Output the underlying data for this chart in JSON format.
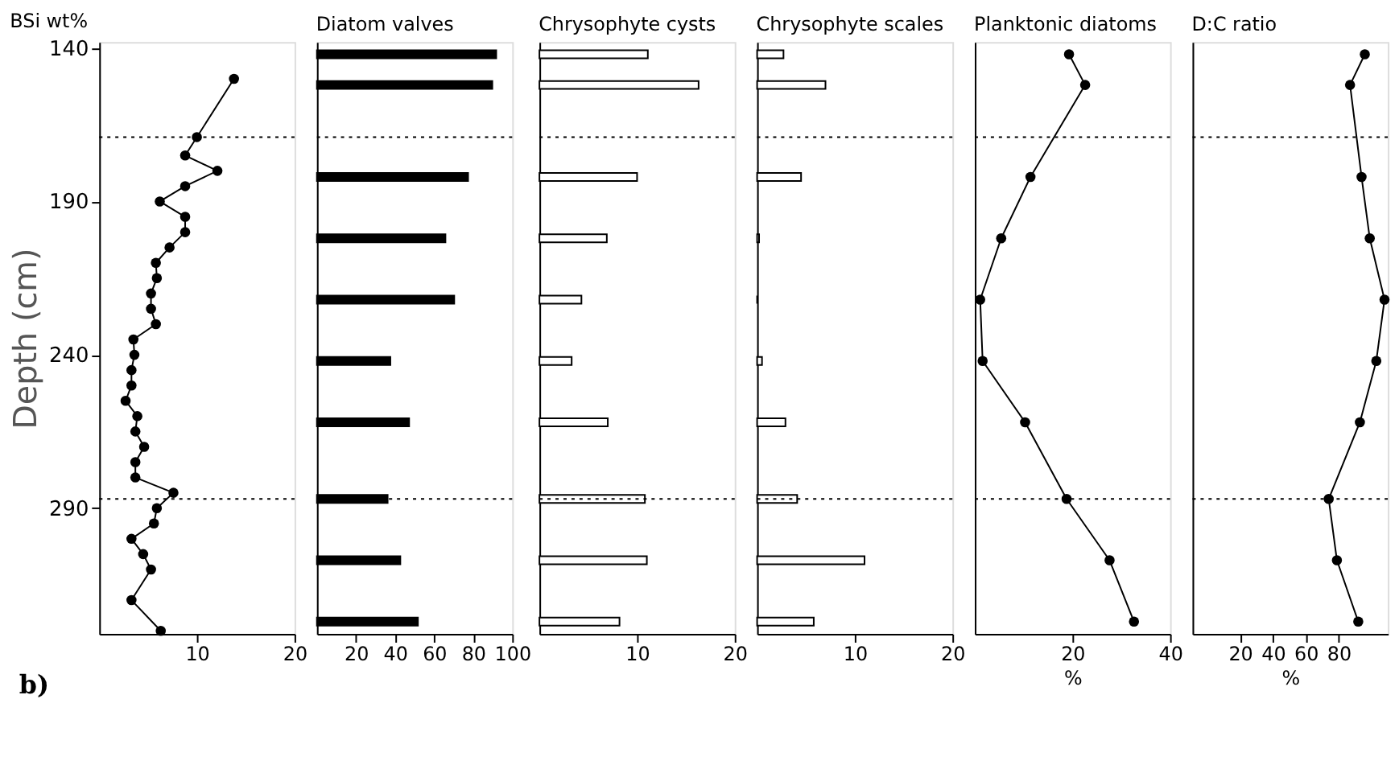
{
  "chart_data": [
    {
      "type": "line",
      "title": "BSi wt%",
      "orientation": "horizontal",
      "ylabel": "Depth (cm)",
      "color": "#000000",
      "marker": "circle",
      "x": [
        150,
        169,
        175,
        180,
        185,
        190,
        195,
        200,
        205,
        210,
        215,
        220,
        225,
        230,
        235,
        240,
        245,
        250,
        255,
        260,
        265,
        270,
        275,
        280,
        285,
        290,
        295,
        300,
        305,
        310,
        320,
        330
      ],
      "values": [
        13.8,
        10.0,
        8.8,
        12.1,
        8.8,
        6.2,
        8.8,
        8.8,
        7.2,
        5.8,
        5.9,
        5.3,
        5.3,
        5.8,
        3.5,
        3.6,
        3.3,
        3.3,
        2.7,
        3.9,
        3.7,
        4.6,
        3.7,
        3.7,
        7.6,
        5.9,
        5.6,
        3.3,
        4.5,
        5.3,
        3.3,
        6.3
      ],
      "xlim": [
        0,
        20
      ],
      "xticks": [
        10,
        20
      ],
      "ylim": [
        331,
        138
      ],
      "yticks": [
        140,
        190,
        240,
        290
      ],
      "ref_lines": [
        {
          "axis": "y",
          "value": 169,
          "line_style": "dotted"
        },
        {
          "axis": "y",
          "value": 287,
          "line_style": "dotted"
        }
      ],
      "annotations": [
        "b)"
      ]
    },
    {
      "type": "bar",
      "title": "Diatom valves",
      "orientation": "horizontal",
      "color": "#000000",
      "tick_labels": "x",
      "x": [
        142,
        152,
        182,
        202,
        222,
        242,
        262,
        287,
        307,
        327
      ],
      "values": [
        91.8,
        89.8,
        77.4,
        65.8,
        70.3,
        37.6,
        47.2,
        36.2,
        42.7,
        51.7
      ],
      "xlim": [
        0,
        100
      ],
      "xticks": [
        20,
        40,
        60,
        80,
        100
      ],
      "ylim": [
        331,
        138
      ],
      "ref_lines": [
        {
          "axis": "y",
          "value": 169,
          "line_style": "dotted"
        },
        {
          "axis": "y",
          "value": 287,
          "line_style": "dotted"
        }
      ]
    },
    {
      "type": "bar",
      "title": "Chrysophyte cysts",
      "orientation": "horizontal",
      "color": "#ffffff",
      "tick_labels": "x",
      "x": [
        142,
        152,
        182,
        202,
        222,
        242,
        262,
        287,
        307,
        327
      ],
      "values": [
        11.1,
        16.3,
        10.0,
        6.9,
        4.3,
        3.3,
        7.0,
        10.8,
        11.0,
        8.2
      ],
      "xlim": [
        0,
        20
      ],
      "xticks": [
        10,
        20
      ],
      "ylim": [
        331,
        138
      ],
      "ref_lines": [
        {
          "axis": "y",
          "value": 169,
          "line_style": "dotted"
        },
        {
          "axis": "y",
          "value": 287,
          "line_style": "dotted"
        }
      ]
    },
    {
      "type": "bar",
      "title": "Chrysophyte scales",
      "orientation": "horizontal",
      "color": "#ffffff",
      "tick_labels": "x",
      "x": [
        142,
        152,
        182,
        202,
        222,
        242,
        262,
        287,
        307,
        327
      ],
      "values": [
        2.7,
        7.0,
        4.5,
        0.2,
        0,
        0.5,
        2.9,
        4.1,
        11.0,
        5.8
      ],
      "xlim": [
        0,
        20
      ],
      "xticks": [
        10,
        20
      ],
      "ylim": [
        331,
        138
      ],
      "ref_lines": [
        {
          "axis": "y",
          "value": 169,
          "line_style": "dotted"
        },
        {
          "axis": "y",
          "value": 287,
          "line_style": "dotted"
        }
      ]
    },
    {
      "type": "line",
      "title": "Planktonic diatoms",
      "orientation": "horizontal",
      "xlabel": "%",
      "color": "#000000",
      "marker": "circle",
      "tick_labels": "x",
      "x": [
        142,
        152,
        182,
        202,
        222,
        242,
        262,
        287,
        307,
        327
      ],
      "values": [
        19.3,
        22.6,
        11.4,
        5.4,
        1.1,
        1.6,
        10.3,
        18.8,
        27.6,
        32.6
      ],
      "xlim": [
        0,
        40
      ],
      "xticks": [
        20,
        40
      ],
      "ylim": [
        331,
        138
      ],
      "ref_lines": [
        {
          "axis": "y",
          "value": 169,
          "line_style": "dotted"
        },
        {
          "axis": "y",
          "value": 287,
          "line_style": "dotted"
        }
      ]
    },
    {
      "type": "line",
      "title": "D:C ratio",
      "orientation": "horizontal",
      "xlabel": "%",
      "color": "#000000",
      "marker": "circle",
      "tick_labels": "x",
      "x": [
        142,
        152,
        182,
        202,
        222,
        242,
        262,
        287,
        307,
        327
      ],
      "values": [
        96,
        87,
        94,
        99,
        108,
        103,
        93,
        74,
        79,
        92
      ],
      "xlim": [
        -9,
        110
      ],
      "xticks": [
        20,
        40,
        60,
        80
      ],
      "ylim": [
        331,
        138
      ],
      "ref_lines": [
        {
          "axis": "y",
          "value": 169,
          "line_style": "dotted"
        },
        {
          "axis": "y",
          "value": 287,
          "line_style": "dotted"
        }
      ]
    }
  ]
}
